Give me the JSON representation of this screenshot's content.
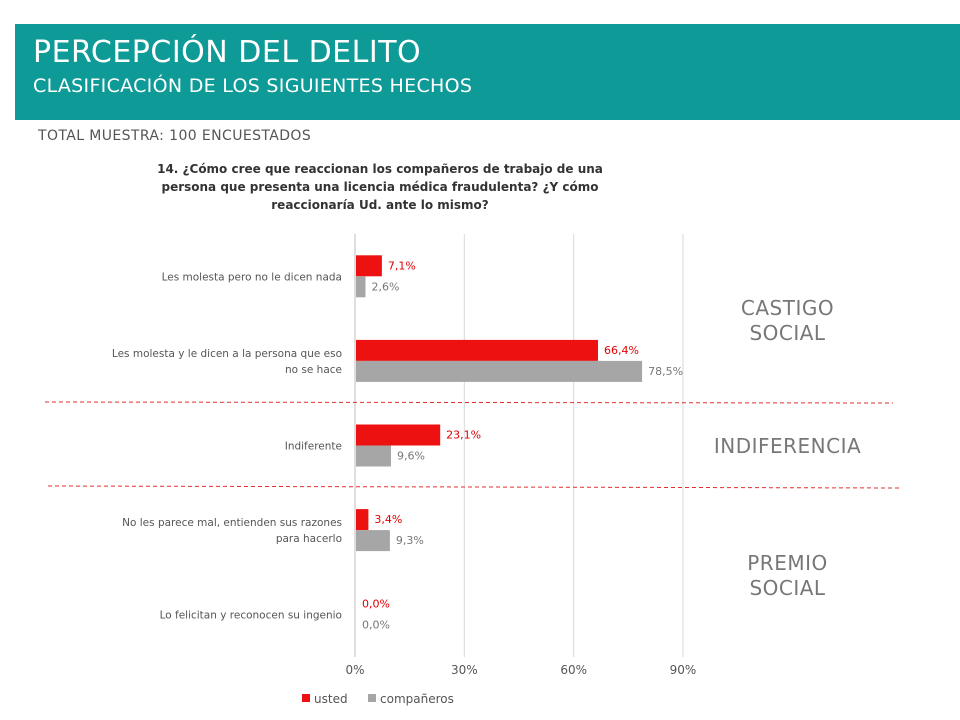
{
  "header": {
    "title": "PERCEPCIÓN DEL DELITO",
    "subtitle": "CLASIFICACIÓN DE LOS SIGUIENTES HECHOS"
  },
  "sample_text": "TOTAL MUESTRA: 100 ENCUESTADOS",
  "question_lines": [
    "14. ¿Cómo cree que  reaccionan los compañeros de trabajo de una",
    "persona que presenta una licencia médica fraudulenta? ¿Y cómo",
    "reaccionaría Ud. ante lo mismo?"
  ],
  "groups": [
    {
      "lines": [
        "CASTIGO",
        "SOCIAL"
      ]
    },
    {
      "lines": [
        "INDIFERENCIA"
      ]
    },
    {
      "lines": [
        "PREMIO",
        "SOCIAL"
      ]
    }
  ],
  "colors": {
    "banner": "#0e9a97",
    "usted": "#ee1111",
    "companeros": "#a6a6a6",
    "divider": "#e03030"
  },
  "chart_data": {
    "type": "bar",
    "orientation": "horizontal",
    "categories": [
      [
        "Les molesta pero no le dicen nada"
      ],
      [
        "Les molesta y le dicen a la persona que eso",
        "no se hace"
      ],
      [
        "Indiferente"
      ],
      [
        "No les parece mal, entienden sus razones",
        "para hacerlo"
      ],
      [
        "Lo felicitan y reconocen su ingenio"
      ]
    ],
    "series": [
      {
        "name": "usted",
        "values": [
          7.1,
          66.4,
          23.1,
          3.4,
          0.0
        ],
        "labels": [
          "7,1%",
          "66,4%",
          "23,1%",
          "3,4%",
          "0,0%"
        ]
      },
      {
        "name": "compañeros",
        "values": [
          2.6,
          78.5,
          9.6,
          9.3,
          0.0
        ],
        "labels": [
          "2,6%",
          "78,5%",
          "9,6%",
          "9,3%",
          "0,0%"
        ]
      }
    ],
    "xlim": [
      0,
      90
    ],
    "xticks": [
      "0%",
      "30%",
      "60%",
      "90%"
    ],
    "grid": true,
    "legend": "bottom"
  }
}
